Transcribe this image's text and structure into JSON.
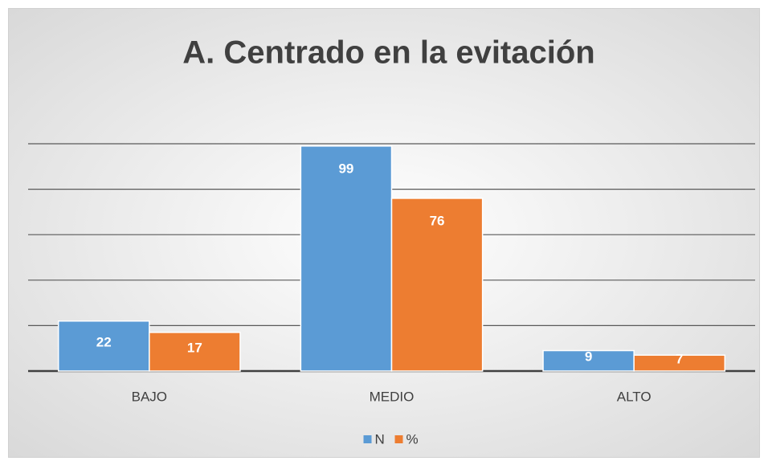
{
  "chart_data": {
    "type": "bar",
    "title": "A. Centrado en la evitación",
    "categories": [
      "BAJO",
      "MEDIO",
      "ALTO"
    ],
    "series": [
      {
        "name": "N",
        "color": "#5b9bd5",
        "values": [
          22,
          99,
          9
        ]
      },
      {
        "name": "%",
        "color": "#ed7d31",
        "values": [
          17,
          76,
          7
        ]
      }
    ],
    "ylim": [
      0,
      100
    ],
    "yticks": [
      0,
      20,
      40,
      60,
      80,
      100
    ],
    "grid": true,
    "legend": "bottom"
  }
}
